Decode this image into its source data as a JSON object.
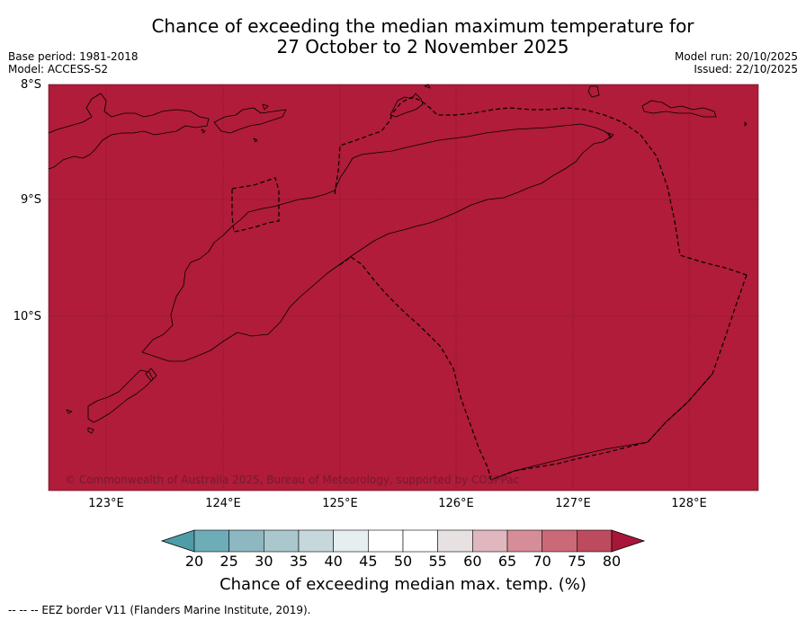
{
  "title": {
    "line1": "Chance of exceeding the median maximum temperature for",
    "line2": "27 October to 2 November 2025"
  },
  "meta_left": {
    "base_period": "Base period: 1981-2018",
    "model": "Model: ACCESS-S2"
  },
  "meta_right": {
    "model_run": "Model run: 20/10/2025",
    "issued": "Issued: 22/10/2025"
  },
  "map": {
    "fill_color": "#b01c39",
    "coastline_color": "#000000",
    "latitude_labels": [
      "8°S",
      "9°S",
      "10°S"
    ],
    "longitude_labels": [
      "123°E",
      "124°E",
      "125°E",
      "126°E",
      "127°E",
      "128°E"
    ],
    "copyright": "© Commonwealth of Australia 2025, Bureau of Meteorology, supported by COSPPac"
  },
  "colorbar": {
    "ticks": [
      "20",
      "25",
      "30",
      "35",
      "40",
      "45",
      "50",
      "55",
      "60",
      "65",
      "70",
      "75",
      "80"
    ],
    "colors": [
      "#4e9ca8",
      "#6eadb8",
      "#8db8c2",
      "#a9c7cc",
      "#c6d8dc",
      "#e6eef0",
      "#ffffff",
      "#ffffff",
      "#e8e1e2",
      "#e1b7bf",
      "#d68d97",
      "#ca6a78",
      "#be4a5e",
      "#a8163a"
    ],
    "title": "Chance of exceeding median max. temp. (%)"
  },
  "footer": {
    "legend": "--  --  -- EEZ border V11 (Flanders Marine Institute, 2019)."
  }
}
